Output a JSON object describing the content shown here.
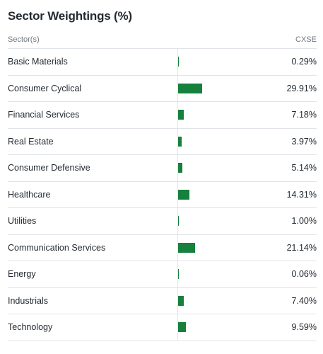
{
  "title": "Sector Weightings (%)",
  "table": {
    "col_sector": "Sector(s)",
    "col_fund": "CXSE",
    "bar_color": "#16803c",
    "rows": [
      {
        "sector": "Basic Materials",
        "value": "0.29%",
        "pct": 0.29
      },
      {
        "sector": "Consumer Cyclical",
        "value": "29.91%",
        "pct": 29.91
      },
      {
        "sector": "Financial Services",
        "value": "7.18%",
        "pct": 7.18
      },
      {
        "sector": "Real Estate",
        "value": "3.97%",
        "pct": 3.97
      },
      {
        "sector": "Consumer Defensive",
        "value": "5.14%",
        "pct": 5.14
      },
      {
        "sector": "Healthcare",
        "value": "14.31%",
        "pct": 14.31
      },
      {
        "sector": "Utilities",
        "value": "1.00%",
        "pct": 1.0
      },
      {
        "sector": "Communication Services",
        "value": "21.14%",
        "pct": 21.14
      },
      {
        "sector": "Energy",
        "value": "0.06%",
        "pct": 0.06
      },
      {
        "sector": "Industrials",
        "value": "7.40%",
        "pct": 7.4
      },
      {
        "sector": "Technology",
        "value": "9.59%",
        "pct": 9.59
      }
    ]
  }
}
